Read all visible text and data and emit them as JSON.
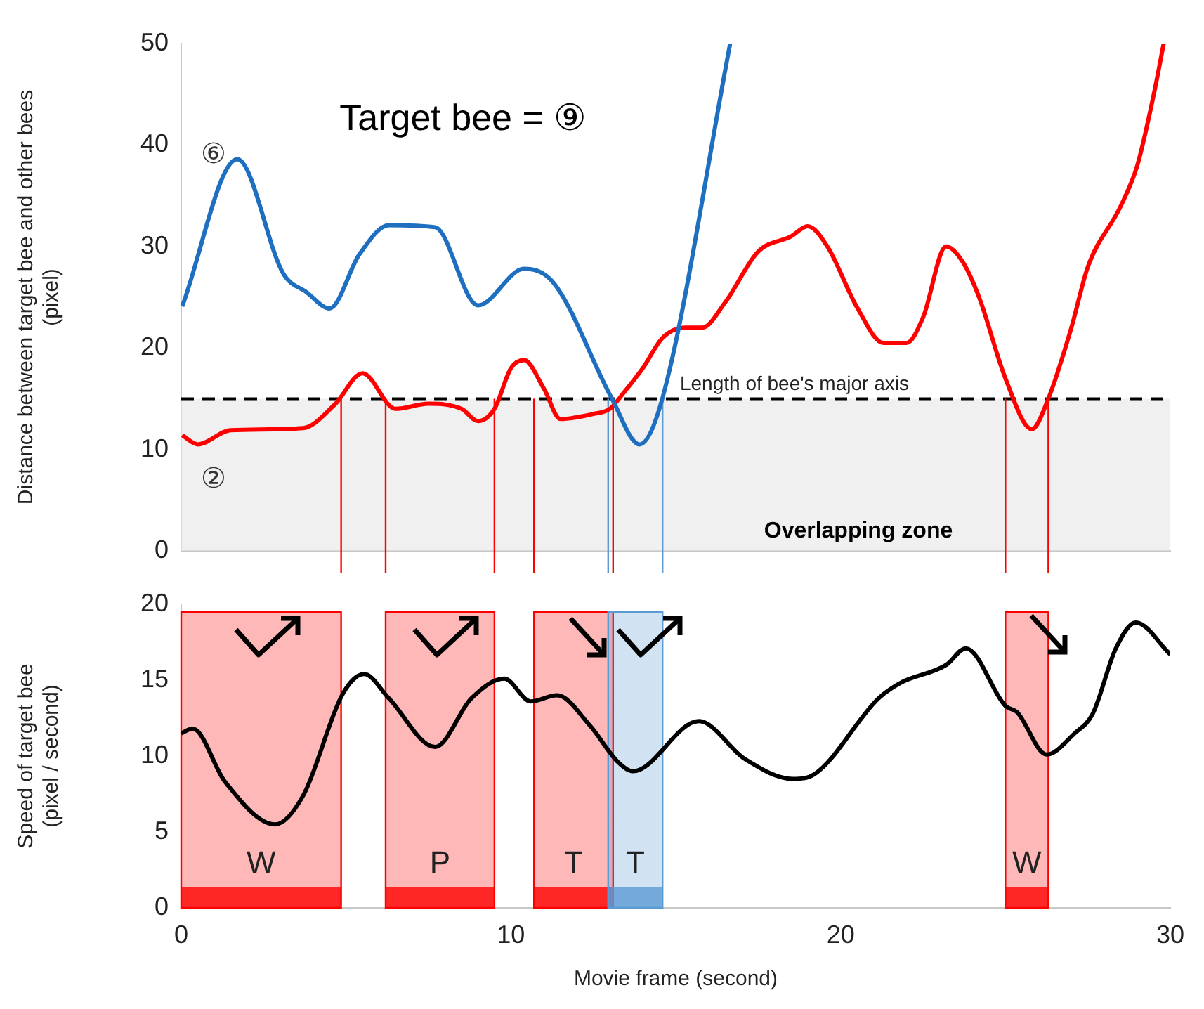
{
  "chart_data": [
    {
      "type": "line",
      "ylabel": "Distance between target bee and other bees\n(pixel)",
      "annotations": [
        "Target bee = ⑨"
      ],
      "xlim": [
        0,
        30
      ],
      "xticks": [
        0,
        10,
        20,
        30
      ],
      "ylim": [
        0,
        50
      ],
      "yticks": [
        0,
        10,
        20,
        30,
        40,
        50
      ],
      "tick_labels": "y",
      "grid": false,
      "legend": false,
      "line_style": "solid",
      "marker": "none",
      "series": [
        {
          "name": "⑥",
          "color": "#1f6fc0",
          "x": [
            0.03,
            1.7,
            3.1,
            3.8,
            4.5,
            5.4,
            6.3,
            7.7,
            9.0,
            10.4,
            11.3,
            13.05,
            13.9,
            14.6,
            16.65
          ],
          "values": [
            24.1,
            38.6,
            27.3,
            25.5,
            23.9,
            29.2,
            32.1,
            31.9,
            24.2,
            27.8,
            26.4,
            15.1,
            10.5,
            15.1,
            50
          ]
        },
        {
          "name": "②",
          "color": "#ff0000",
          "x": [
            0.03,
            0.5,
            1.5,
            3.7,
            4.65,
            5.5,
            6.5,
            7.5,
            8.5,
            9.0,
            9.5,
            10.0,
            10.4,
            11.0,
            11.5,
            12.5,
            13.0,
            13.4,
            14.0,
            14.6,
            15.3,
            15.8,
            16.5,
            17.5,
            18.5,
            19.0,
            19.6,
            20.5,
            21.3,
            22.0,
            22.5,
            23.2,
            23.7,
            24.2,
            25.0,
            25.8,
            26.3,
            27.0,
            27.5,
            28.5,
            29.0,
            29.5,
            29.8
          ],
          "values": [
            11.4,
            10.5,
            11.9,
            12.1,
            14.4,
            17.5,
            14,
            14.5,
            14,
            12.8,
            14,
            18,
            18.8,
            16,
            13,
            13.5,
            14,
            15.5,
            18,
            21,
            22,
            22,
            24.5,
            29.5,
            31,
            32,
            30,
            24,
            20.5,
            20.5,
            23,
            30,
            28.5,
            25,
            17,
            12,
            15,
            22,
            28,
            34,
            38,
            45,
            50
          ]
        }
      ],
      "ref_lines": [
        {
          "axis": "y",
          "value": 15,
          "label": "Length of bee's major axis",
          "color": "#000000",
          "line_style": "dashed"
        },
        {
          "axis": "x",
          "value": 4.85,
          "color": "#ff0000"
        },
        {
          "axis": "x",
          "value": 6.2,
          "color": "#ff0000"
        },
        {
          "axis": "x",
          "value": 9.5,
          "color": "#ff0000"
        },
        {
          "axis": "x",
          "value": 10.7,
          "color": "#ff0000"
        },
        {
          "axis": "x",
          "value": 13.1,
          "color": "#ff0000"
        },
        {
          "axis": "x",
          "value": 12.95,
          "color": "#5b9bd5"
        },
        {
          "axis": "x",
          "value": 14.6,
          "color": "#5b9bd5"
        },
        {
          "axis": "x",
          "value": 25.0,
          "color": "#ff0000"
        },
        {
          "axis": "x",
          "value": 26.3,
          "color": "#ff0000"
        }
      ],
      "bands": [
        {
          "axis": "y",
          "from": 0,
          "to": 15,
          "label": "Overlapping zone",
          "color": "#e6e6e6"
        }
      ]
    },
    {
      "type": "line",
      "xlabel": "Movie frame (second)",
      "ylabel": "Speed of target bee\n(pixel / second)",
      "xlim": [
        0,
        30
      ],
      "xticks": [
        0,
        10,
        20,
        30
      ],
      "ylim": [
        0,
        20
      ],
      "yticks": [
        0,
        5,
        10,
        15,
        20
      ],
      "grid": false,
      "legend": false,
      "line_style": "solid",
      "marker": "none",
      "series": [
        {
          "color": "#000000",
          "x": [
            0,
            0.35,
            1.33,
            2.85,
            3.7,
            4.9,
            5.55,
            6.3,
            7.7,
            8.8,
            9.8,
            10.6,
            11.4,
            12.4,
            13.25,
            13.7,
            15.7,
            17.1,
            18.55,
            19.2,
            21.15,
            21.8,
            23.2,
            23.8,
            25.0,
            25.35,
            26.25,
            27.1,
            27.65,
            28.35,
            28.95,
            30
          ],
          "values": [
            11.5,
            11.8,
            8.3,
            5.5,
            7.4,
            14.1,
            15.4,
            13.8,
            10.6,
            13.8,
            15.1,
            13.6,
            14.0,
            12.0,
            9.6,
            9.0,
            12.3,
            9.8,
            8.5,
            8.8,
            13.8,
            14.8,
            16.0,
            17.1,
            13.3,
            12.9,
            10.1,
            11.5,
            12.8,
            17.1,
            18.8,
            16.7
          ]
        }
      ],
      "bands": [
        {
          "axis": "x",
          "from": 0,
          "to": 4.85,
          "label": "W",
          "color": "#ff0000"
        },
        {
          "axis": "x",
          "from": 6.2,
          "to": 9.5,
          "label": "P",
          "color": "#ff0000"
        },
        {
          "axis": "x",
          "from": 10.7,
          "to": 13.1,
          "label": "T",
          "color": "#ff0000"
        },
        {
          "axis": "x",
          "from": 12.95,
          "to": 14.6,
          "label": "T",
          "color": "#5b9bd5"
        },
        {
          "axis": "x",
          "from": 25.0,
          "to": 26.3,
          "label": "W",
          "color": "#ff0000"
        }
      ]
    }
  ]
}
